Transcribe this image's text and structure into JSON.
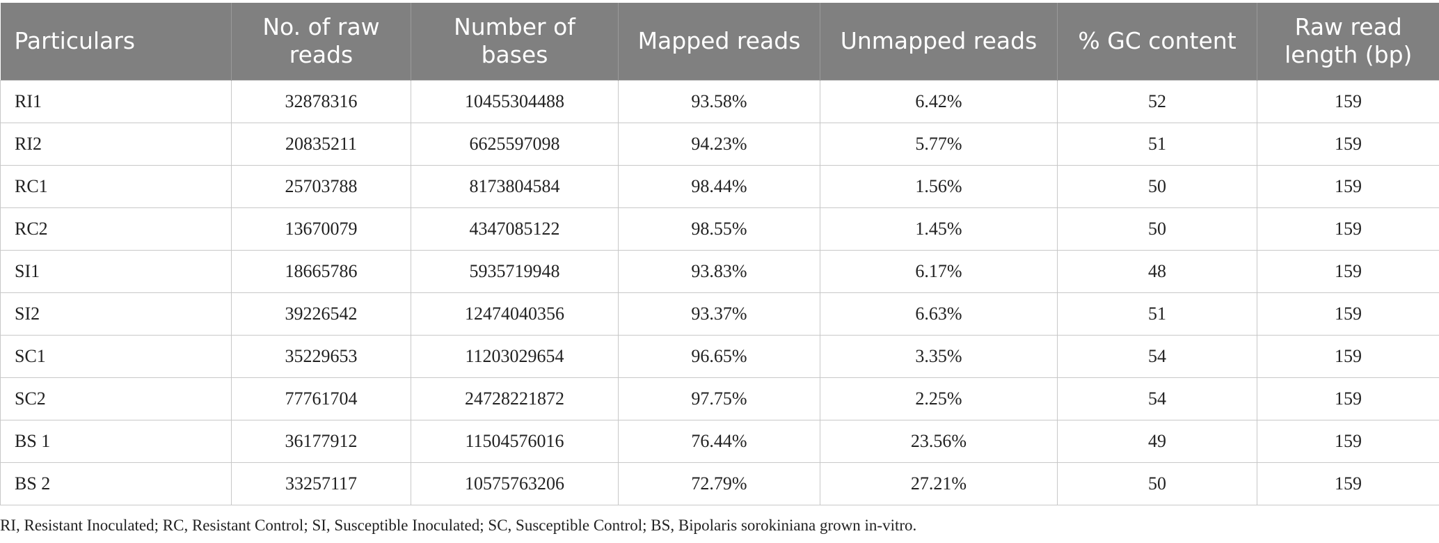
{
  "table": {
    "header": [
      "Particulars",
      "No. of raw reads",
      "Number of bases",
      "Mapped reads",
      "Unmapped reads",
      "% GC content",
      "Raw read length (bp)"
    ],
    "rows": [
      [
        "RI1",
        "32878316",
        "10455304488",
        "93.58%",
        "6.42%",
        "52",
        "159"
      ],
      [
        "RI2",
        "20835211",
        "6625597098",
        "94.23%",
        "5.77%",
        "51",
        "159"
      ],
      [
        "RC1",
        "25703788",
        "8173804584",
        "98.44%",
        "1.56%",
        "50",
        "159"
      ],
      [
        "RC2",
        "13670079",
        "4347085122",
        "98.55%",
        "1.45%",
        "50",
        "159"
      ],
      [
        "SI1",
        "18665786",
        "5935719948",
        "93.83%",
        "6.17%",
        "48",
        "159"
      ],
      [
        "SI2",
        "39226542",
        "12474040356",
        "93.37%",
        "6.63%",
        "51",
        "159"
      ],
      [
        "SC1",
        "35229653",
        "11203029654",
        "96.65%",
        "3.35%",
        "54",
        "159"
      ],
      [
        "SC2",
        "77761704",
        "24728221872",
        "97.75%",
        "2.25%",
        "54",
        "159"
      ],
      [
        "BS 1",
        "36177912",
        "11504576016",
        "76.44%",
        "23.56%",
        "49",
        "159"
      ],
      [
        "BS 2",
        "33257117",
        "10575763206",
        "72.79%",
        "27.21%",
        "50",
        "159"
      ]
    ],
    "footnote": "RI, Resistant Inoculated; RC, Resistant Control; SI, Susceptible Inoculated; SC, Susceptible Control; BS, Bipolaris sorokiniana grown in-vitro."
  }
}
